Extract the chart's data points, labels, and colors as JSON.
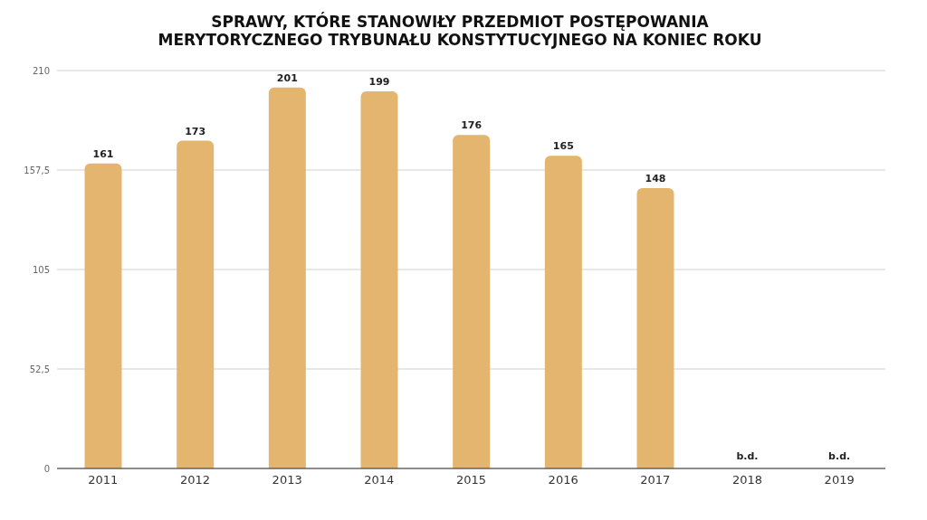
{
  "chart_data": {
    "type": "bar",
    "title": "SPRAWY, KTÓRE STANOWIŁY PRZEDMIOT POSTĘPOWANIA MERYTORYCZNEGO TRYBUNAŁU KONSTYTUCYJNEGO NA KONIEC ROKU",
    "categories": [
      "2011",
      "2012",
      "2013",
      "2014",
      "2015",
      "2016",
      "2017",
      "2018",
      "2019"
    ],
    "values": [
      161,
      173,
      201,
      199,
      176,
      165,
      148,
      null,
      null
    ],
    "value_labels": [
      "161",
      "173",
      "201",
      "199",
      "176",
      "165",
      "148",
      "b.d.",
      "b.d."
    ],
    "color": "#e3b56e",
    "ylim": [
      0,
      210
    ],
    "yticks": [
      0,
      {
        "value": 52.5,
        "label": "52,5"
      },
      105,
      {
        "value": 157.5,
        "label": "157,5"
      },
      210
    ],
    "grid": "y"
  }
}
